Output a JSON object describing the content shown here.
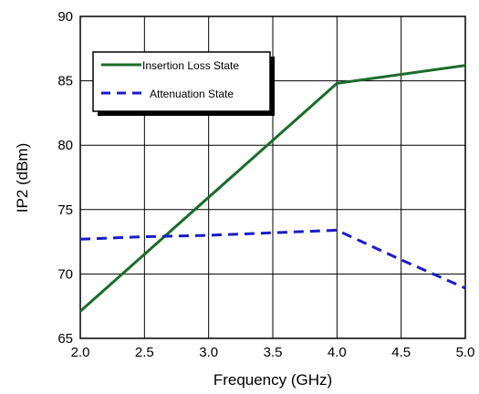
{
  "chart_data": {
    "type": "line",
    "xlabel": "Frequency (GHz)",
    "ylabel": "IP2 (dBm)",
    "xlim": [
      2.0,
      5.0
    ],
    "ylim": [
      65,
      90
    ],
    "xticks": [
      "2.0",
      "2.5",
      "3.0",
      "3.5",
      "4.0",
      "4.5",
      "5.0"
    ],
    "yticks": [
      "65",
      "70",
      "75",
      "80",
      "85",
      "90"
    ],
    "grid": true,
    "legend_position": "top-left",
    "series": [
      {
        "name": "Insertion Loss State",
        "color": "#1a6b2a",
        "dash": "solid",
        "x": [
          2.0,
          4.0,
          5.0
        ],
        "y": [
          67.1,
          84.8,
          86.2
        ]
      },
      {
        "name": "Attenuation State",
        "color": "#1a1acc",
        "dash": "dashed",
        "x": [
          2.0,
          2.5,
          3.0,
          3.5,
          4.0,
          4.5,
          5.0
        ],
        "y": [
          72.7,
          72.9,
          73.0,
          73.2,
          73.4,
          71.1,
          68.9
        ]
      }
    ]
  }
}
